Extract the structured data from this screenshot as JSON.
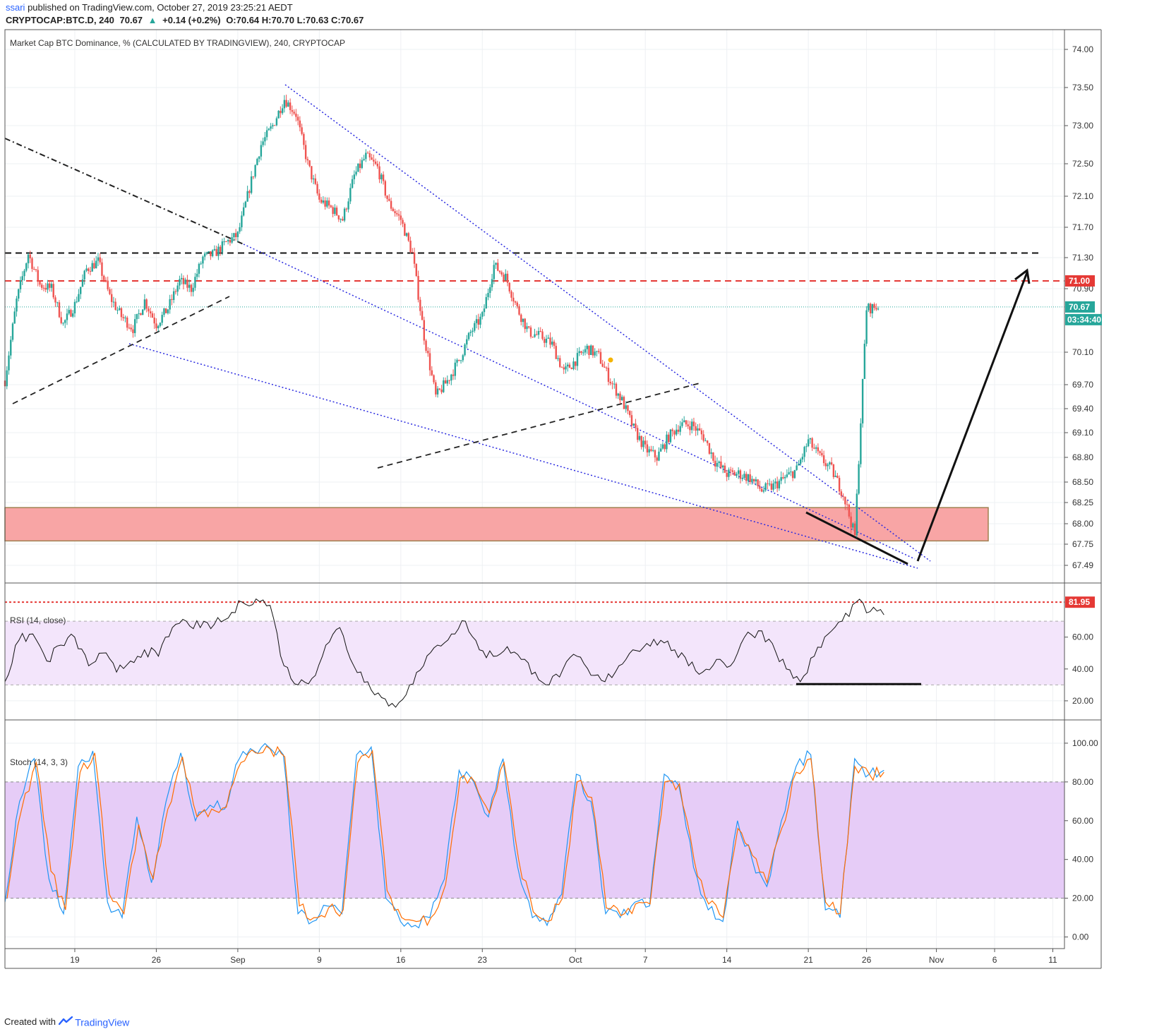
{
  "header": {
    "user": "ssari",
    "published_text": "published on TradingView.com, October 27, 2019 23:25:21 AEDT",
    "symbol": "CRYPTOCAP:BTC.D, 240",
    "last": "70.67",
    "arrow": "▲",
    "change": "+0.14 (+0.2%)",
    "ohlc": "O:70.64 H:70.70 L:70.63 C:70.67"
  },
  "footer": {
    "created_with": "Created with",
    "brand": "TradingView",
    "logo_icon": "tradingview-logo-icon"
  },
  "colors": {
    "up": "#26a69a",
    "down": "#ef5350",
    "rsi_line": "#111111",
    "stoch_k": "#2196f3",
    "stoch_d": "#ff6d00",
    "support_zone": "#f8a5a5",
    "resistance_red": "#e53935"
  },
  "chart_data": [
    {
      "type": "candlestick",
      "title": "Market Cap BTC Dominance, % (CALCULATED BY TRADINGVIEW), 240, CRYPTOCAP",
      "x_ticks": [
        "19",
        "26",
        "Sep",
        "9",
        "16",
        "23",
        "Oct",
        "7",
        "14",
        "21",
        "26",
        "Nov",
        "6",
        "11"
      ],
      "y_ticks": [
        "74.00",
        "73.50",
        "73.00",
        "72.50",
        "72.10",
        "71.70",
        "71.30",
        "70.90",
        "70.10",
        "69.70",
        "69.40",
        "69.10",
        "68.80",
        "68.50",
        "68.25",
        "68.00",
        "67.75",
        "67.49"
      ],
      "ylim": [
        67.35,
        74.1
      ],
      "last_price_label": "70.67",
      "countdown_label": "03:34:40",
      "resistance_label": "71.00",
      "close_path": [
        [
          "2019-08-13",
          69.75
        ],
        [
          "2019-08-14",
          70.75
        ],
        [
          "2019-08-15",
          71.35
        ],
        [
          "2019-08-16",
          70.95
        ],
        [
          "2019-08-17",
          70.9
        ],
        [
          "2019-08-18",
          70.45
        ],
        [
          "2019-08-19",
          70.7
        ],
        [
          "2019-08-20",
          71.15
        ],
        [
          "2019-08-21",
          71.25
        ],
        [
          "2019-08-22",
          70.8
        ],
        [
          "2019-08-23",
          70.55
        ],
        [
          "2019-08-24",
          70.4
        ],
        [
          "2019-08-25",
          70.75
        ],
        [
          "2019-08-26",
          70.45
        ],
        [
          "2019-08-27",
          70.65
        ],
        [
          "2019-08-28",
          71.0
        ],
        [
          "2019-08-29",
          70.9
        ],
        [
          "2019-08-30",
          71.3
        ],
        [
          "2019-08-31",
          71.35
        ],
        [
          "2019-09-01",
          71.5
        ],
        [
          "2019-09-02",
          71.6
        ],
        [
          "2019-09-03",
          72.2
        ],
        [
          "2019-09-04",
          72.75
        ],
        [
          "2019-09-05",
          73.0
        ],
        [
          "2019-09-06",
          73.35
        ],
        [
          "2019-09-07",
          73.15
        ],
        [
          "2019-09-08",
          72.5
        ],
        [
          "2019-09-09",
          72.05
        ],
        [
          "2019-09-10",
          71.95
        ],
        [
          "2019-09-11",
          71.8
        ],
        [
          "2019-09-12",
          72.35
        ],
        [
          "2019-09-13",
          72.6
        ],
        [
          "2019-09-14",
          72.45
        ],
        [
          "2019-09-15",
          72.0
        ],
        [
          "2019-09-16",
          71.8
        ],
        [
          "2019-09-17",
          71.35
        ],
        [
          "2019-09-18",
          70.3
        ],
        [
          "2019-09-19",
          69.55
        ],
        [
          "2019-09-20",
          69.75
        ],
        [
          "2019-09-21",
          70.0
        ],
        [
          "2019-09-22",
          70.35
        ],
        [
          "2019-09-23",
          70.55
        ],
        [
          "2019-09-24",
          71.2
        ],
        [
          "2019-09-25",
          71.05
        ],
        [
          "2019-09-26",
          70.65
        ],
        [
          "2019-09-27",
          70.35
        ],
        [
          "2019-09-28",
          70.3
        ],
        [
          "2019-09-29",
          70.2
        ],
        [
          "2019-09-30",
          69.85
        ],
        [
          "2019-10-01",
          70.0
        ],
        [
          "2019-10-02",
          70.15
        ],
        [
          "2019-10-03",
          70.05
        ],
        [
          "2019-10-04",
          69.75
        ],
        [
          "2019-10-05",
          69.5
        ],
        [
          "2019-10-06",
          69.15
        ],
        [
          "2019-10-07",
          68.9
        ],
        [
          "2019-10-08",
          68.8
        ],
        [
          "2019-10-09",
          69.05
        ],
        [
          "2019-10-10",
          69.2
        ],
        [
          "2019-10-11",
          69.2
        ],
        [
          "2019-10-12",
          69.05
        ],
        [
          "2019-10-13",
          68.75
        ],
        [
          "2019-10-14",
          68.6
        ],
        [
          "2019-10-15",
          68.6
        ],
        [
          "2019-10-16",
          68.55
        ],
        [
          "2019-10-17",
          68.4
        ],
        [
          "2019-10-18",
          68.45
        ],
        [
          "2019-10-19",
          68.55
        ],
        [
          "2019-10-20",
          68.65
        ],
        [
          "2019-10-21",
          69.0
        ],
        [
          "2019-10-22",
          68.8
        ],
        [
          "2019-10-23",
          68.65
        ],
        [
          "2019-10-24",
          68.35
        ],
        [
          "2019-10-25",
          67.85
        ],
        [
          "2019-10-26",
          70.65
        ],
        [
          "2019-10-27",
          70.67
        ]
      ]
    },
    {
      "type": "line",
      "title": "RSI (14, close)",
      "y_ticks": [
        "60.00",
        "40.00",
        "20.00"
      ],
      "ylim": [
        8,
        94
      ],
      "band": [
        30,
        70
      ],
      "level_label": "81.95",
      "series": [
        {
          "values": [
            32,
            58,
            62,
            45,
            55,
            60,
            42,
            50,
            38,
            45,
            52,
            48,
            66,
            70,
            66,
            68,
            72,
            82,
            84,
            80,
            42,
            30,
            34,
            55,
            66,
            42,
            32,
            22,
            16,
            30,
            42,
            55,
            62,
            70,
            52,
            48,
            54,
            46,
            38,
            30,
            40,
            48,
            36,
            32,
            42,
            52,
            56,
            58,
            52,
            42,
            38,
            46,
            42,
            60,
            64,
            56,
            40,
            32,
            48,
            62,
            70,
            82,
            76,
            74
          ]
        }
      ]
    },
    {
      "type": "line",
      "title": "Stoch (14, 3, 3)",
      "y_ticks": [
        "100.00",
        "80.00",
        "60.00",
        "40.00",
        "20.00",
        "0.00"
      ],
      "ylim": [
        -6,
        112
      ],
      "band": [
        20,
        80
      ],
      "series": [
        {
          "values": [
            18,
            70,
            92,
            30,
            12,
            88,
            96,
            18,
            10,
            62,
            28,
            70,
            95,
            60,
            68,
            66,
            92,
            96,
            98,
            94,
            12,
            8,
            16,
            12,
            94,
            98,
            20,
            8,
            6,
            10,
            30,
            86,
            80,
            62,
            92,
            36,
            10,
            6,
            22,
            84,
            70,
            12,
            10,
            18,
            16,
            84,
            78,
            36,
            14,
            8,
            60,
            40,
            26,
            60,
            88,
            94,
            14,
            10,
            92,
            84,
            86
          ]
        },
        {
          "values": [
            20,
            66,
            90,
            34,
            14,
            85,
            95,
            22,
            12,
            58,
            30,
            66,
            93,
            62,
            66,
            67,
            90,
            95,
            97,
            93,
            16,
            10,
            15,
            14,
            90,
            96,
            24,
            10,
            8,
            10,
            27,
            82,
            80,
            64,
            90,
            40,
            13,
            8,
            20,
            80,
            72,
            15,
            11,
            17,
            17,
            80,
            79,
            40,
            17,
            10,
            56,
            42,
            28,
            56,
            85,
            92,
            18,
            12,
            88,
            84,
            85
          ]
        }
      ]
    }
  ]
}
